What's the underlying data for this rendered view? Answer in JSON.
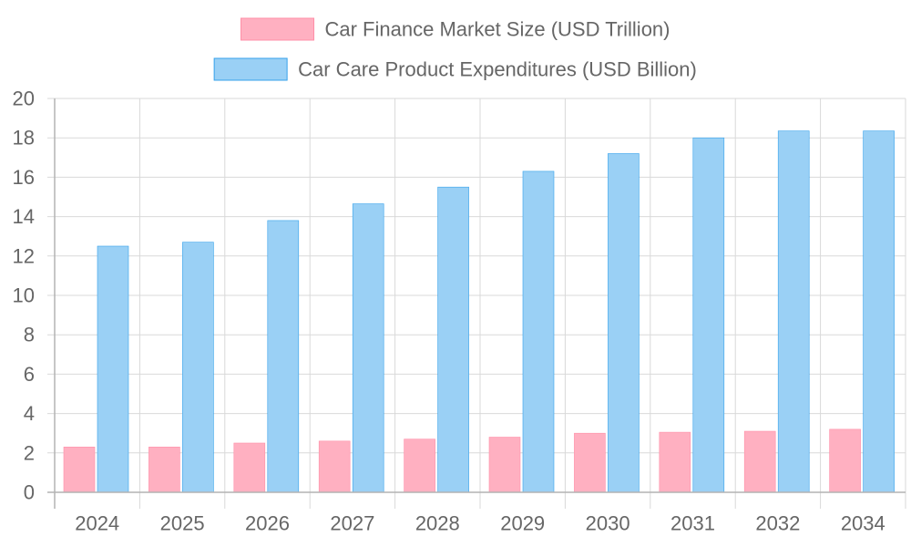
{
  "chart_data": {
    "type": "bar",
    "categories": [
      "2024",
      "2025",
      "2026",
      "2027",
      "2028",
      "2029",
      "2030",
      "2031",
      "2032",
      "2034"
    ],
    "series": [
      {
        "name": "Car Finance Market Size (USD Trillion)",
        "color": "#ffb0c1",
        "border_color": "#ff8fa8",
        "values": [
          2.3,
          2.3,
          2.5,
          2.6,
          2.7,
          2.8,
          3.0,
          3.05,
          3.1,
          3.2
        ]
      },
      {
        "name": "Car Care Product Expenditures (USD Billion)",
        "color": "#9ad0f5",
        "border_color": "#36a2eb",
        "values": [
          12.5,
          12.7,
          13.8,
          14.65,
          15.5,
          16.3,
          17.2,
          18.0,
          18.35,
          18.35
        ]
      }
    ],
    "ylim": [
      0,
      20
    ],
    "yticks": [
      0,
      2,
      4,
      6,
      8,
      10,
      12,
      14,
      16,
      18,
      20
    ],
    "grid": true,
    "legend_position": "top"
  }
}
